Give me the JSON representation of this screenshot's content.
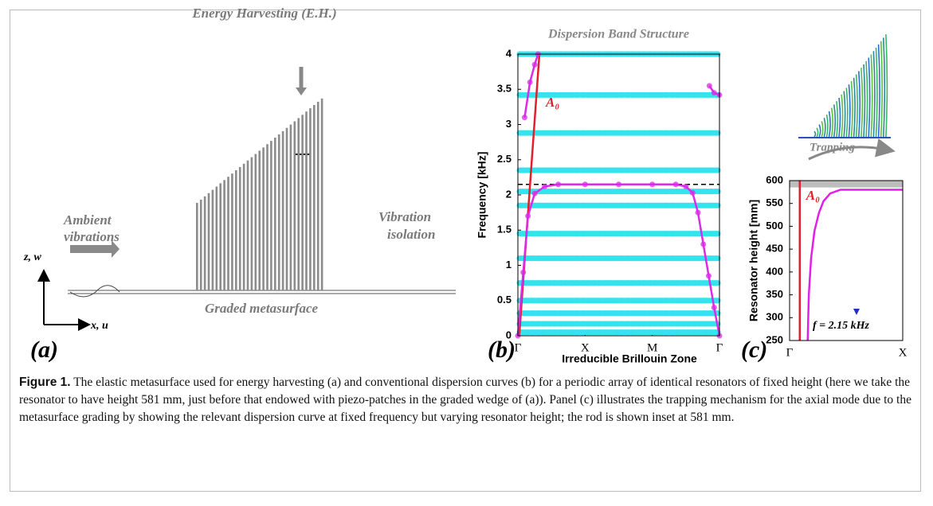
{
  "panel_a": {
    "top_label": "Energy Harvesting (E.H.)",
    "left_label_1": "Ambient",
    "left_label_2": "vibrations",
    "right_label_1": "Vibration",
    "right_label_2": "isolation",
    "bottom_label": "Graded metasurface",
    "axis_z": "z, w",
    "axis_x": "x, u",
    "panel_label": "(a)"
  },
  "chart_data": [
    {
      "type": "line",
      "title": "Dispersion Band Structure",
      "ylabel": "Frequency [kHz]",
      "xlabel": "Irreducible Brillouin Zone",
      "panel_label": "(b)",
      "xlim": [
        0,
        3
      ],
      "xticks": [
        {
          "value": 0,
          "label": "Γ"
        },
        {
          "value": 1,
          "label": "X"
        },
        {
          "value": 2,
          "label": "M"
        },
        {
          "value": 3,
          "label": "Γ"
        }
      ],
      "ylim": [
        0,
        4
      ],
      "yticks": [
        0,
        0.5,
        1,
        1.5,
        2,
        2.5,
        3,
        3.5,
        4
      ],
      "bands": {
        "color": "#35e3ee",
        "values": [
          0.05,
          0.17,
          0.32,
          0.5,
          0.75,
          1.1,
          1.45,
          1.85,
          2.05,
          2.35,
          2.88,
          3.42,
          4.0
        ]
      },
      "reference_line": {
        "value": 2.15,
        "color": "#000000"
      },
      "series": [
        {
          "name": "A₀",
          "color": "#e0202a",
          "x": [
            0.02,
            0.32
          ],
          "values": [
            0,
            4
          ]
        },
        {
          "color": "#d92be8",
          "markers": true,
          "x": [
            0,
            0.08,
            0.15,
            0.25,
            0.4,
            0.6,
            1,
            1.5,
            2,
            2.35,
            2.5,
            2.6,
            2.68,
            2.76,
            2.84,
            2.92,
            3
          ],
          "values": [
            0,
            0.9,
            1.7,
            2.02,
            2.12,
            2.15,
            2.15,
            2.15,
            2.15,
            2.15,
            2.12,
            2.03,
            1.75,
            1.3,
            0.85,
            0.4,
            0
          ]
        },
        {
          "color": "#d92be8",
          "markers": true,
          "x": [
            0.1,
            0.18,
            0.25,
            0.3
          ],
          "values": [
            3.1,
            3.6,
            3.85,
            4.0
          ]
        },
        {
          "color": "#d92be8",
          "markers": true,
          "x": [
            2.85,
            2.92,
            3
          ],
          "values": [
            3.55,
            3.45,
            3.42
          ]
        }
      ]
    },
    {
      "type": "line",
      "ylabel": "Resonator height [mm]",
      "panel_label": "(c)",
      "inset_label": "Trapping",
      "annotation": "f = 2.15 kHz",
      "xlim": [
        0,
        1
      ],
      "xticks": [
        {
          "value": 0,
          "label": "Γ"
        },
        {
          "value": 1,
          "label": "X"
        }
      ],
      "ylim": [
        250,
        600
      ],
      "yticks": [
        250,
        300,
        350,
        400,
        450,
        500,
        550,
        600
      ],
      "shaded_range": [
        585,
        600
      ],
      "series": [
        {
          "name": "A₀",
          "color": "#e0202a",
          "x": [
            0.09,
            0.09
          ],
          "values": [
            250,
            600
          ]
        },
        {
          "color": "#e020e8",
          "x": [
            0.16,
            0.17,
            0.19,
            0.22,
            0.26,
            0.3,
            0.36,
            0.45,
            1
          ],
          "values": [
            250,
            350,
            430,
            490,
            530,
            555,
            572,
            580,
            580
          ]
        }
      ]
    }
  ],
  "caption": {
    "label": "Figure 1.",
    "text": " The elastic metasurface used for energy harvesting (a) and conventional dispersion curves (b) for a periodic array of identical resonators of fixed height (here we take the resonator to have height 581  mm, just before that endowed with piezo-patches in the graded wedge of (a)). Panel (c) illustrates the trapping mechanism for the axial mode due to the metasurface grading by showing the relevant dispersion curve at fixed frequency but varying resonator height; the rod is shown inset at 581  mm."
  }
}
